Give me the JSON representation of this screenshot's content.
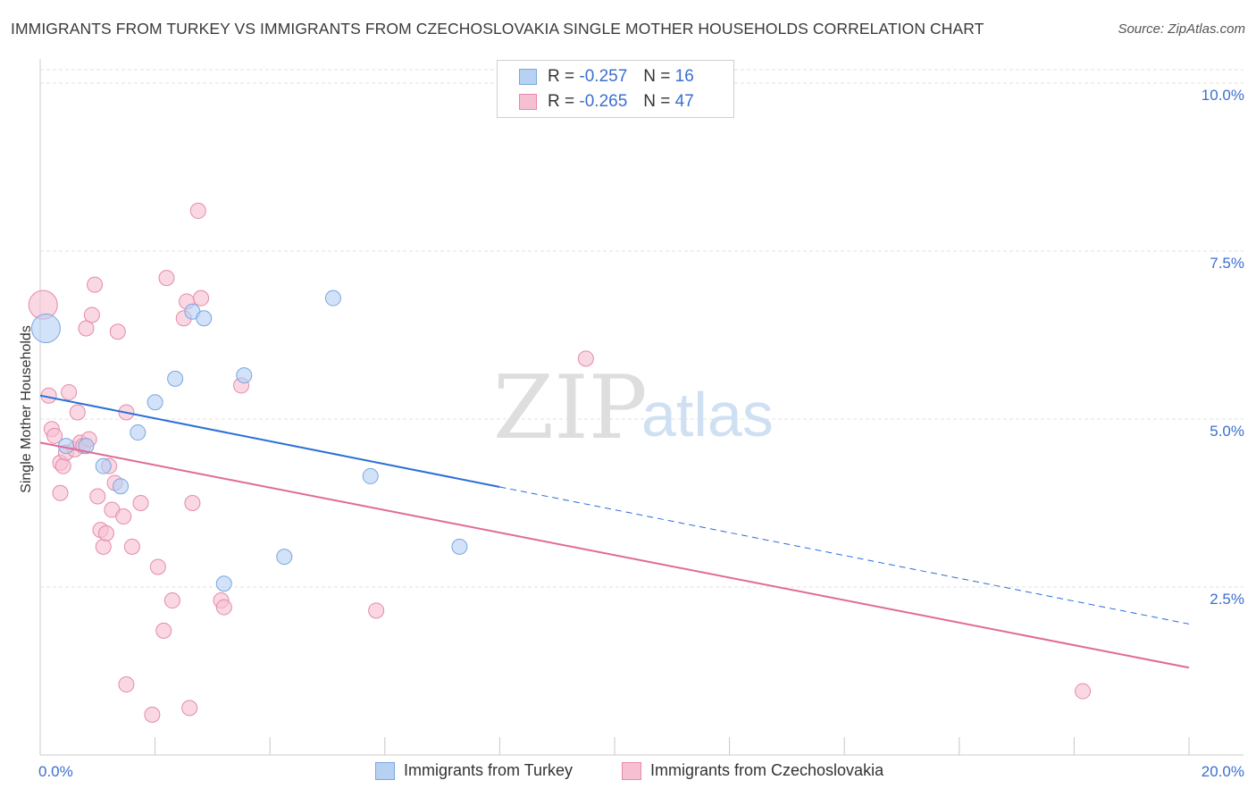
{
  "header": {
    "title": "IMMIGRANTS FROM TURKEY VS IMMIGRANTS FROM CZECHOSLOVAKIA SINGLE MOTHER HOUSEHOLDS CORRELATION CHART",
    "source": "Source: ZipAtlas.com"
  },
  "legend": {
    "r_label": "R =",
    "n_label": "N =",
    "turkey": {
      "r": "-0.257",
      "n": "16"
    },
    "czech": {
      "r": "-0.265",
      "n": "47"
    }
  },
  "watermark": {
    "zip": "ZIP",
    "atlas": "atlas"
  },
  "colors": {
    "turkey_fill": "#b7d1f3",
    "turkey_stroke": "#7aa6e0",
    "turkey_line": "#2a6fd6",
    "czech_fill": "#f7c0d2",
    "czech_stroke": "#e48aa9",
    "czech_line": "#e06a96"
  },
  "chart_data": {
    "type": "scatter",
    "title": "IMMIGRANTS FROM TURKEY VS IMMIGRANTS FROM CZECHOSLOVAKIA SINGLE MOTHER HOUSEHOLDS CORRELATION CHART",
    "xlabel": "",
    "ylabel": "Single Mother Households",
    "xlim": [
      0,
      20
    ],
    "ylim": [
      0,
      10.2
    ],
    "x_tick_labels": [
      "0.0%",
      "20.0%"
    ],
    "y_ticks": [
      2.5,
      5.0,
      7.5,
      10.0
    ],
    "y_tick_labels": [
      "2.5%",
      "5.0%",
      "7.5%",
      "10.0%"
    ],
    "grid": true,
    "legend_position": "top-center",
    "series": [
      {
        "name": "Immigrants from Turkey",
        "points": [
          {
            "x": 0.1,
            "y": 6.35,
            "big": true
          },
          {
            "x": 0.45,
            "y": 4.6
          },
          {
            "x": 0.8,
            "y": 4.6
          },
          {
            "x": 1.1,
            "y": 4.3
          },
          {
            "x": 1.4,
            "y": 4.0
          },
          {
            "x": 1.7,
            "y": 4.8
          },
          {
            "x": 2.0,
            "y": 5.25
          },
          {
            "x": 2.35,
            "y": 5.6
          },
          {
            "x": 2.65,
            "y": 6.6
          },
          {
            "x": 2.85,
            "y": 6.5
          },
          {
            "x": 3.2,
            "y": 2.55
          },
          {
            "x": 3.55,
            "y": 5.65
          },
          {
            "x": 4.25,
            "y": 2.95
          },
          {
            "x": 5.1,
            "y": 6.8
          },
          {
            "x": 5.75,
            "y": 4.15
          },
          {
            "x": 7.3,
            "y": 3.1
          }
        ],
        "trend": {
          "x0": 0.0,
          "y0": 5.35,
          "x_solid_end": 8.0,
          "x1": 20.0,
          "y1": 1.95
        }
      },
      {
        "name": "Immigrants from Czechoslovakia",
        "points": [
          {
            "x": 0.05,
            "y": 6.7,
            "big": true
          },
          {
            "x": 0.15,
            "y": 5.35
          },
          {
            "x": 0.2,
            "y": 4.85
          },
          {
            "x": 0.25,
            "y": 4.75
          },
          {
            "x": 0.35,
            "y": 3.9
          },
          {
            "x": 0.35,
            "y": 4.35
          },
          {
            "x": 0.4,
            "y": 4.3
          },
          {
            "x": 0.45,
            "y": 4.5
          },
          {
            "x": 0.5,
            "y": 5.4
          },
          {
            "x": 0.6,
            "y": 4.55
          },
          {
            "x": 0.65,
            "y": 5.1
          },
          {
            "x": 0.7,
            "y": 4.65
          },
          {
            "x": 0.75,
            "y": 4.6
          },
          {
            "x": 0.85,
            "y": 4.7
          },
          {
            "x": 0.8,
            "y": 6.35
          },
          {
            "x": 0.9,
            "y": 6.55
          },
          {
            "x": 0.95,
            "y": 7.0
          },
          {
            "x": 1.0,
            "y": 3.85
          },
          {
            "x": 1.05,
            "y": 3.35
          },
          {
            "x": 1.1,
            "y": 3.1
          },
          {
            "x": 1.15,
            "y": 3.3
          },
          {
            "x": 1.2,
            "y": 4.3
          },
          {
            "x": 1.25,
            "y": 3.65
          },
          {
            "x": 1.3,
            "y": 4.05
          },
          {
            "x": 1.35,
            "y": 6.3
          },
          {
            "x": 1.45,
            "y": 3.55
          },
          {
            "x": 1.5,
            "y": 5.1
          },
          {
            "x": 1.5,
            "y": 1.05
          },
          {
            "x": 1.6,
            "y": 3.1
          },
          {
            "x": 1.75,
            "y": 3.75
          },
          {
            "x": 1.95,
            "y": 0.6
          },
          {
            "x": 2.05,
            "y": 2.8
          },
          {
            "x": 2.15,
            "y": 1.85
          },
          {
            "x": 2.2,
            "y": 7.1
          },
          {
            "x": 2.3,
            "y": 2.3
          },
          {
            "x": 2.5,
            "y": 6.5
          },
          {
            "x": 2.55,
            "y": 6.75
          },
          {
            "x": 2.6,
            "y": 0.7
          },
          {
            "x": 2.65,
            "y": 3.75
          },
          {
            "x": 2.75,
            "y": 8.1
          },
          {
            "x": 2.8,
            "y": 6.8
          },
          {
            "x": 3.15,
            "y": 2.3
          },
          {
            "x": 3.2,
            "y": 2.2
          },
          {
            "x": 3.5,
            "y": 5.5
          },
          {
            "x": 5.85,
            "y": 2.15
          },
          {
            "x": 9.5,
            "y": 5.9
          },
          {
            "x": 18.15,
            "y": 0.95
          }
        ],
        "trend": {
          "x0": 0.0,
          "y0": 4.65,
          "x1": 20.0,
          "y1": 1.3
        }
      }
    ]
  }
}
